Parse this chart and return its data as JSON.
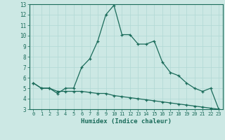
{
  "xlabel": "Humidex (Indice chaleur)",
  "ylabel": "",
  "bg_color": "#cce8e4",
  "line_color": "#1a6b5a",
  "grid_color": "#b0d8d4",
  "xlim": [
    -0.5,
    23.5
  ],
  "ylim": [
    3,
    13
  ],
  "xticks": [
    0,
    1,
    2,
    3,
    4,
    5,
    6,
    7,
    8,
    9,
    10,
    11,
    12,
    13,
    14,
    15,
    16,
    17,
    18,
    19,
    20,
    21,
    22,
    23
  ],
  "yticks": [
    3,
    4,
    5,
    6,
    7,
    8,
    9,
    10,
    11,
    12,
    13
  ],
  "line1_x": [
    0,
    1,
    2,
    3,
    4,
    5,
    6,
    7,
    8,
    9,
    10,
    11,
    12,
    13,
    14,
    15,
    16,
    17,
    18,
    19,
    20,
    21,
    22,
    23
  ],
  "line1_y": [
    5.5,
    5.0,
    5.0,
    4.5,
    5.0,
    5.0,
    7.0,
    7.8,
    9.5,
    12.0,
    12.9,
    10.1,
    10.1,
    9.2,
    9.2,
    9.5,
    7.5,
    6.5,
    6.2,
    5.5,
    5.0,
    4.7,
    5.0,
    3.0
  ],
  "line2_x": [
    0,
    1,
    2,
    3,
    4,
    5,
    6,
    7,
    8,
    9,
    10,
    11,
    12,
    13,
    14,
    15,
    16,
    17,
    18,
    19,
    20,
    21,
    22,
    23
  ],
  "line2_y": [
    5.5,
    5.0,
    5.0,
    4.7,
    4.7,
    4.7,
    4.7,
    4.6,
    4.5,
    4.5,
    4.3,
    4.2,
    4.1,
    4.0,
    3.9,
    3.8,
    3.7,
    3.6,
    3.5,
    3.4,
    3.3,
    3.2,
    3.1,
    3.0
  ]
}
